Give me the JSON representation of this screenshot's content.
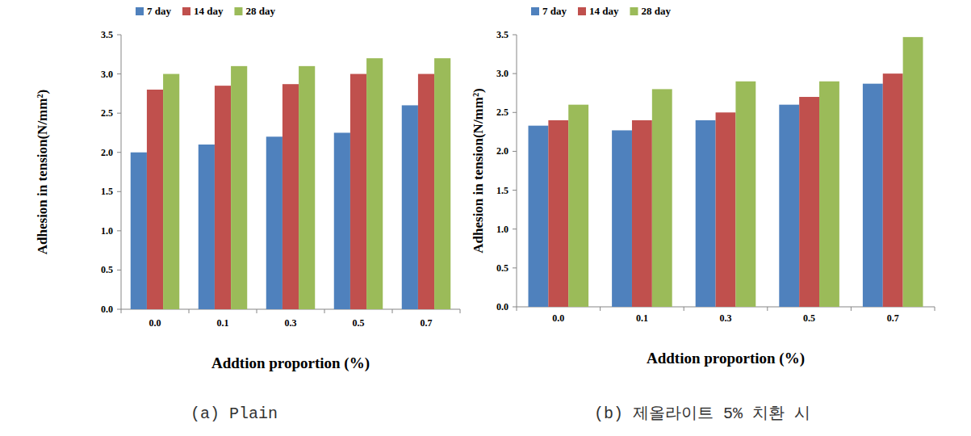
{
  "chart_data": [
    {
      "type": "bar",
      "title": "(a) Plain",
      "x_label": "Addtion proportion (%)",
      "y_label": "Adhesion in tension(N/mm²)",
      "categories": [
        "0.0",
        "0.1",
        "0.3",
        "0.5",
        "0.7"
      ],
      "series": [
        {
          "name": "7 day",
          "color": "#4f81bd",
          "values": [
            2.0,
            2.1,
            2.2,
            2.25,
            2.6
          ]
        },
        {
          "name": "14 day",
          "color": "#c0504d",
          "values": [
            2.8,
            2.85,
            2.87,
            3.0,
            3.0
          ]
        },
        {
          "name": "28 day",
          "color": "#9bbb59",
          "values": [
            3.0,
            3.1,
            3.1,
            3.2,
            3.2
          ]
        }
      ],
      "ylim": [
        0,
        3.5
      ],
      "yticks": [
        {
          "value": 0,
          "label": "0.0"
        },
        0.5,
        {
          "value": 1,
          "label": "1.0"
        },
        1.5,
        {
          "value": 2,
          "label": "2.0"
        },
        2.5,
        {
          "value": 3,
          "label": "3.0"
        },
        3.5
      ],
      "grid": false,
      "legend": "top-left"
    },
    {
      "type": "bar",
      "title": "(b) 제올라이트 5% 치환 시",
      "x_label": "Addtion proportion (%)",
      "y_label": "Adhesion in tension(N/mm²)",
      "categories": [
        "0.0",
        "0.1",
        "0.3",
        "0.5",
        "0.7"
      ],
      "series": [
        {
          "name": "7 day",
          "color": "#4f81bd",
          "values": [
            2.33,
            2.27,
            2.4,
            2.6,
            2.87
          ]
        },
        {
          "name": "14 day",
          "color": "#c0504d",
          "values": [
            2.4,
            2.4,
            2.5,
            2.7,
            3.0
          ]
        },
        {
          "name": "28 day",
          "color": "#9bbb59",
          "values": [
            2.6,
            2.8,
            2.9,
            2.9,
            3.47
          ]
        }
      ],
      "ylim": [
        0,
        3.5
      ],
      "yticks": [
        {
          "value": 0,
          "label": "0.0"
        },
        0.5,
        {
          "value": 1,
          "label": "1.0"
        },
        1.5,
        {
          "value": 2,
          "label": "2.0"
        },
        2.5,
        {
          "value": 3,
          "label": "3.0"
        },
        3.5
      ],
      "grid": false,
      "legend": "top-left"
    }
  ]
}
